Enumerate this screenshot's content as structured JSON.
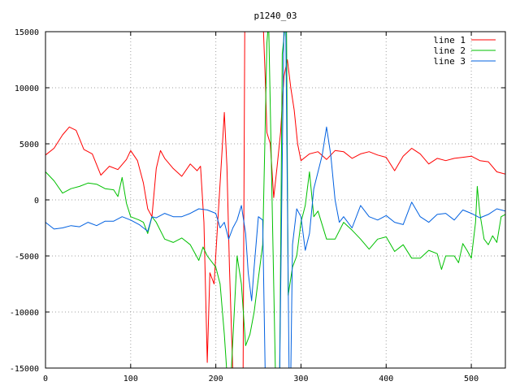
{
  "chart_data": {
    "type": "line",
    "title": "p1240_03",
    "xlabel": "",
    "ylabel": "",
    "xlim": [
      0,
      540
    ],
    "ylim": [
      -15000,
      15000
    ],
    "xticks": [
      0,
      100,
      200,
      300,
      400,
      500
    ],
    "yticks": [
      -15000,
      -10000,
      -5000,
      0,
      5000,
      10000,
      15000
    ],
    "grid": true,
    "legend_position": "top-right",
    "series": [
      {
        "name": "line 1",
        "color": "#ff0000",
        "points": [
          [
            0,
            4000
          ],
          [
            10,
            4600
          ],
          [
            20,
            5800
          ],
          [
            28,
            6500
          ],
          [
            36,
            6200
          ],
          [
            45,
            4500
          ],
          [
            55,
            4100
          ],
          [
            65,
            2200
          ],
          [
            75,
            3000
          ],
          [
            85,
            2700
          ],
          [
            95,
            3600
          ],
          [
            100,
            4400
          ],
          [
            108,
            3500
          ],
          [
            115,
            1500
          ],
          [
            120,
            -800
          ],
          [
            125,
            -1500
          ],
          [
            130,
            2800
          ],
          [
            135,
            4400
          ],
          [
            140,
            3700
          ],
          [
            150,
            2800
          ],
          [
            160,
            2100
          ],
          [
            170,
            3200
          ],
          [
            178,
            2600
          ],
          [
            182,
            3000
          ],
          [
            186,
            -2000
          ],
          [
            190,
            -14500
          ],
          [
            193,
            -6500
          ],
          [
            198,
            -7500
          ],
          [
            203,
            -1000
          ],
          [
            207,
            4000
          ],
          [
            210,
            7800
          ],
          [
            213,
            3000
          ],
          [
            216,
            -6000
          ],
          [
            220,
            -15500
          ],
          [
            224,
            -15500
          ],
          [
            232,
            -15500
          ],
          [
            234,
            16000
          ],
          [
            236,
            16000
          ],
          [
            240,
            16000
          ],
          [
            245,
            16000
          ],
          [
            248,
            16000
          ],
          [
            253,
            16000
          ],
          [
            256,
            15000
          ],
          [
            258,
            11000
          ],
          [
            260,
            6000
          ],
          [
            264,
            5000
          ],
          [
            268,
            200
          ],
          [
            272,
            3000
          ],
          [
            276,
            6000
          ],
          [
            280,
            11000
          ],
          [
            284,
            12500
          ],
          [
            288,
            10000
          ],
          [
            292,
            8000
          ],
          [
            296,
            5000
          ],
          [
            300,
            3500
          ],
          [
            310,
            4100
          ],
          [
            320,
            4300
          ],
          [
            330,
            3600
          ],
          [
            340,
            4400
          ],
          [
            350,
            4300
          ],
          [
            360,
            3700
          ],
          [
            370,
            4100
          ],
          [
            380,
            4300
          ],
          [
            390,
            4000
          ],
          [
            400,
            3800
          ],
          [
            410,
            2600
          ],
          [
            420,
            3900
          ],
          [
            430,
            4600
          ],
          [
            440,
            4100
          ],
          [
            450,
            3200
          ],
          [
            460,
            3700
          ],
          [
            470,
            3500
          ],
          [
            480,
            3700
          ],
          [
            490,
            3800
          ],
          [
            500,
            3900
          ],
          [
            510,
            3500
          ],
          [
            520,
            3400
          ],
          [
            530,
            2500
          ],
          [
            540,
            2300
          ]
        ]
      },
      {
        "name": "line 2",
        "color": "#00c000",
        "points": [
          [
            0,
            2500
          ],
          [
            10,
            1700
          ],
          [
            20,
            600
          ],
          [
            30,
            1000
          ],
          [
            40,
            1200
          ],
          [
            50,
            1500
          ],
          [
            60,
            1400
          ],
          [
            70,
            1000
          ],
          [
            80,
            900
          ],
          [
            85,
            300
          ],
          [
            90,
            2000
          ],
          [
            95,
            -300
          ],
          [
            100,
            -1500
          ],
          [
            110,
            -1800
          ],
          [
            115,
            -2000
          ],
          [
            120,
            -3000
          ],
          [
            125,
            -1500
          ],
          [
            130,
            -2000
          ],
          [
            140,
            -3500
          ],
          [
            150,
            -3800
          ],
          [
            160,
            -3400
          ],
          [
            170,
            -4000
          ],
          [
            180,
            -5400
          ],
          [
            185,
            -4200
          ],
          [
            190,
            -5000
          ],
          [
            200,
            -6000
          ],
          [
            205,
            -7500
          ],
          [
            210,
            -12000
          ],
          [
            213,
            -15500
          ],
          [
            218,
            -15500
          ],
          [
            225,
            -5000
          ],
          [
            230,
            -7500
          ],
          [
            235,
            -13000
          ],
          [
            240,
            -12000
          ],
          [
            245,
            -10000
          ],
          [
            250,
            -7000
          ],
          [
            255,
            -4000
          ],
          [
            258,
            6500
          ],
          [
            260,
            14000
          ],
          [
            262,
            16000
          ],
          [
            270,
            -15500
          ],
          [
            275,
            -15500
          ],
          [
            278,
            13000
          ],
          [
            282,
            16000
          ],
          [
            283,
            16000
          ],
          [
            285,
            -8500
          ],
          [
            290,
            -6000
          ],
          [
            295,
            -5000
          ],
          [
            300,
            -2000
          ],
          [
            305,
            -500
          ],
          [
            310,
            2500
          ],
          [
            315,
            -1500
          ],
          [
            320,
            -1000
          ],
          [
            330,
            -3500
          ],
          [
            340,
            -3500
          ],
          [
            350,
            -2000
          ],
          [
            360,
            -2700
          ],
          [
            370,
            -3500
          ],
          [
            380,
            -4400
          ],
          [
            390,
            -3500
          ],
          [
            400,
            -3300
          ],
          [
            410,
            -4600
          ],
          [
            420,
            -4000
          ],
          [
            430,
            -5200
          ],
          [
            440,
            -5200
          ],
          [
            450,
            -4500
          ],
          [
            460,
            -4800
          ],
          [
            465,
            -6200
          ],
          [
            470,
            -5000
          ],
          [
            480,
            -5000
          ],
          [
            485,
            -5600
          ],
          [
            490,
            -3900
          ],
          [
            495,
            -4500
          ],
          [
            500,
            -5200
          ],
          [
            505,
            -2000
          ],
          [
            507,
            1200
          ],
          [
            510,
            -1200
          ],
          [
            515,
            -3500
          ],
          [
            520,
            -4000
          ],
          [
            525,
            -3200
          ],
          [
            530,
            -3800
          ],
          [
            535,
            -1500
          ],
          [
            540,
            -1300
          ]
        ]
      },
      {
        "name": "line 3",
        "color": "#0060e0",
        "points": [
          [
            0,
            -2000
          ],
          [
            10,
            -2600
          ],
          [
            20,
            -2500
          ],
          [
            30,
            -2300
          ],
          [
            40,
            -2400
          ],
          [
            50,
            -2000
          ],
          [
            60,
            -2300
          ],
          [
            70,
            -1900
          ],
          [
            80,
            -1900
          ],
          [
            90,
            -1500
          ],
          [
            100,
            -1800
          ],
          [
            110,
            -2200
          ],
          [
            120,
            -2800
          ],
          [
            125,
            -1500
          ],
          [
            130,
            -1600
          ],
          [
            140,
            -1200
          ],
          [
            150,
            -1500
          ],
          [
            160,
            -1500
          ],
          [
            170,
            -1200
          ],
          [
            180,
            -800
          ],
          [
            190,
            -900
          ],
          [
            200,
            -1200
          ],
          [
            205,
            -2500
          ],
          [
            210,
            -2000
          ],
          [
            215,
            -3500
          ],
          [
            220,
            -2500
          ],
          [
            225,
            -1800
          ],
          [
            230,
            -500
          ],
          [
            235,
            -3000
          ],
          [
            238,
            -6500
          ],
          [
            242,
            -9000
          ],
          [
            245,
            -6000
          ],
          [
            250,
            -1500
          ],
          [
            255,
            -1800
          ],
          [
            258,
            -15500
          ],
          [
            262,
            -15500
          ],
          [
            270,
            -15500
          ],
          [
            275,
            -15500
          ],
          [
            280,
            16000
          ],
          [
            282,
            16000
          ],
          [
            286,
            -15500
          ],
          [
            288,
            -15500
          ],
          [
            290,
            -4000
          ],
          [
            295,
            -800
          ],
          [
            300,
            -1500
          ],
          [
            305,
            -4500
          ],
          [
            310,
            -3000
          ],
          [
            315,
            1000
          ],
          [
            320,
            2500
          ],
          [
            325,
            4000
          ],
          [
            330,
            6500
          ],
          [
            335,
            4000
          ],
          [
            340,
            0
          ],
          [
            345,
            -2000
          ],
          [
            350,
            -1500
          ],
          [
            360,
            -2500
          ],
          [
            370,
            -500
          ],
          [
            380,
            -1500
          ],
          [
            390,
            -1800
          ],
          [
            400,
            -1400
          ],
          [
            410,
            -2000
          ],
          [
            420,
            -2200
          ],
          [
            430,
            -200
          ],
          [
            440,
            -1500
          ],
          [
            450,
            -2000
          ],
          [
            460,
            -1300
          ],
          [
            470,
            -1200
          ],
          [
            480,
            -1800
          ],
          [
            490,
            -900
          ],
          [
            500,
            -1200
          ],
          [
            510,
            -1600
          ],
          [
            520,
            -1300
          ],
          [
            530,
            -800
          ],
          [
            540,
            -1000
          ]
        ]
      }
    ]
  }
}
